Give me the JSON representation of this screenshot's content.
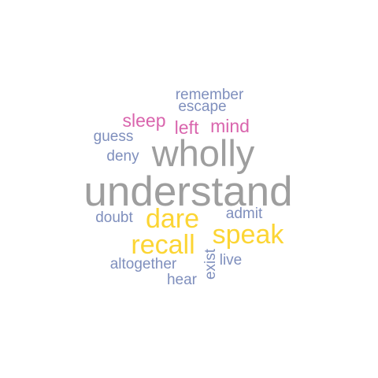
{
  "palette": {
    "gray": "#9e9e9e",
    "yellow": "#fcd534",
    "pink": "#d965ad",
    "blue": "#7f8fbd"
  },
  "words": [
    {
      "id": "understand",
      "text": "understand",
      "color": "gray"
    },
    {
      "id": "wholly",
      "text": "wholly",
      "color": "gray"
    },
    {
      "id": "speak",
      "text": "speak",
      "color": "yellow"
    },
    {
      "id": "recall",
      "text": "recall",
      "color": "yellow"
    },
    {
      "id": "dare",
      "text": "dare",
      "color": "yellow"
    },
    {
      "id": "sleep",
      "text": "sleep",
      "color": "pink"
    },
    {
      "id": "left",
      "text": "left",
      "color": "pink"
    },
    {
      "id": "mind",
      "text": "mind",
      "color": "pink"
    },
    {
      "id": "remember",
      "text": "remember",
      "color": "blue"
    },
    {
      "id": "escape",
      "text": "escape",
      "color": "blue"
    },
    {
      "id": "guess",
      "text": "guess",
      "color": "blue"
    },
    {
      "id": "deny",
      "text": "deny",
      "color": "blue"
    },
    {
      "id": "doubt",
      "text": "doubt",
      "color": "blue"
    },
    {
      "id": "admit",
      "text": "admit",
      "color": "blue"
    },
    {
      "id": "altogether",
      "text": "altogether",
      "color": "blue"
    },
    {
      "id": "live",
      "text": "live",
      "color": "blue"
    },
    {
      "id": "hear",
      "text": "hear",
      "color": "blue"
    },
    {
      "id": "exist",
      "text": "exist",
      "color": "blue"
    }
  ]
}
